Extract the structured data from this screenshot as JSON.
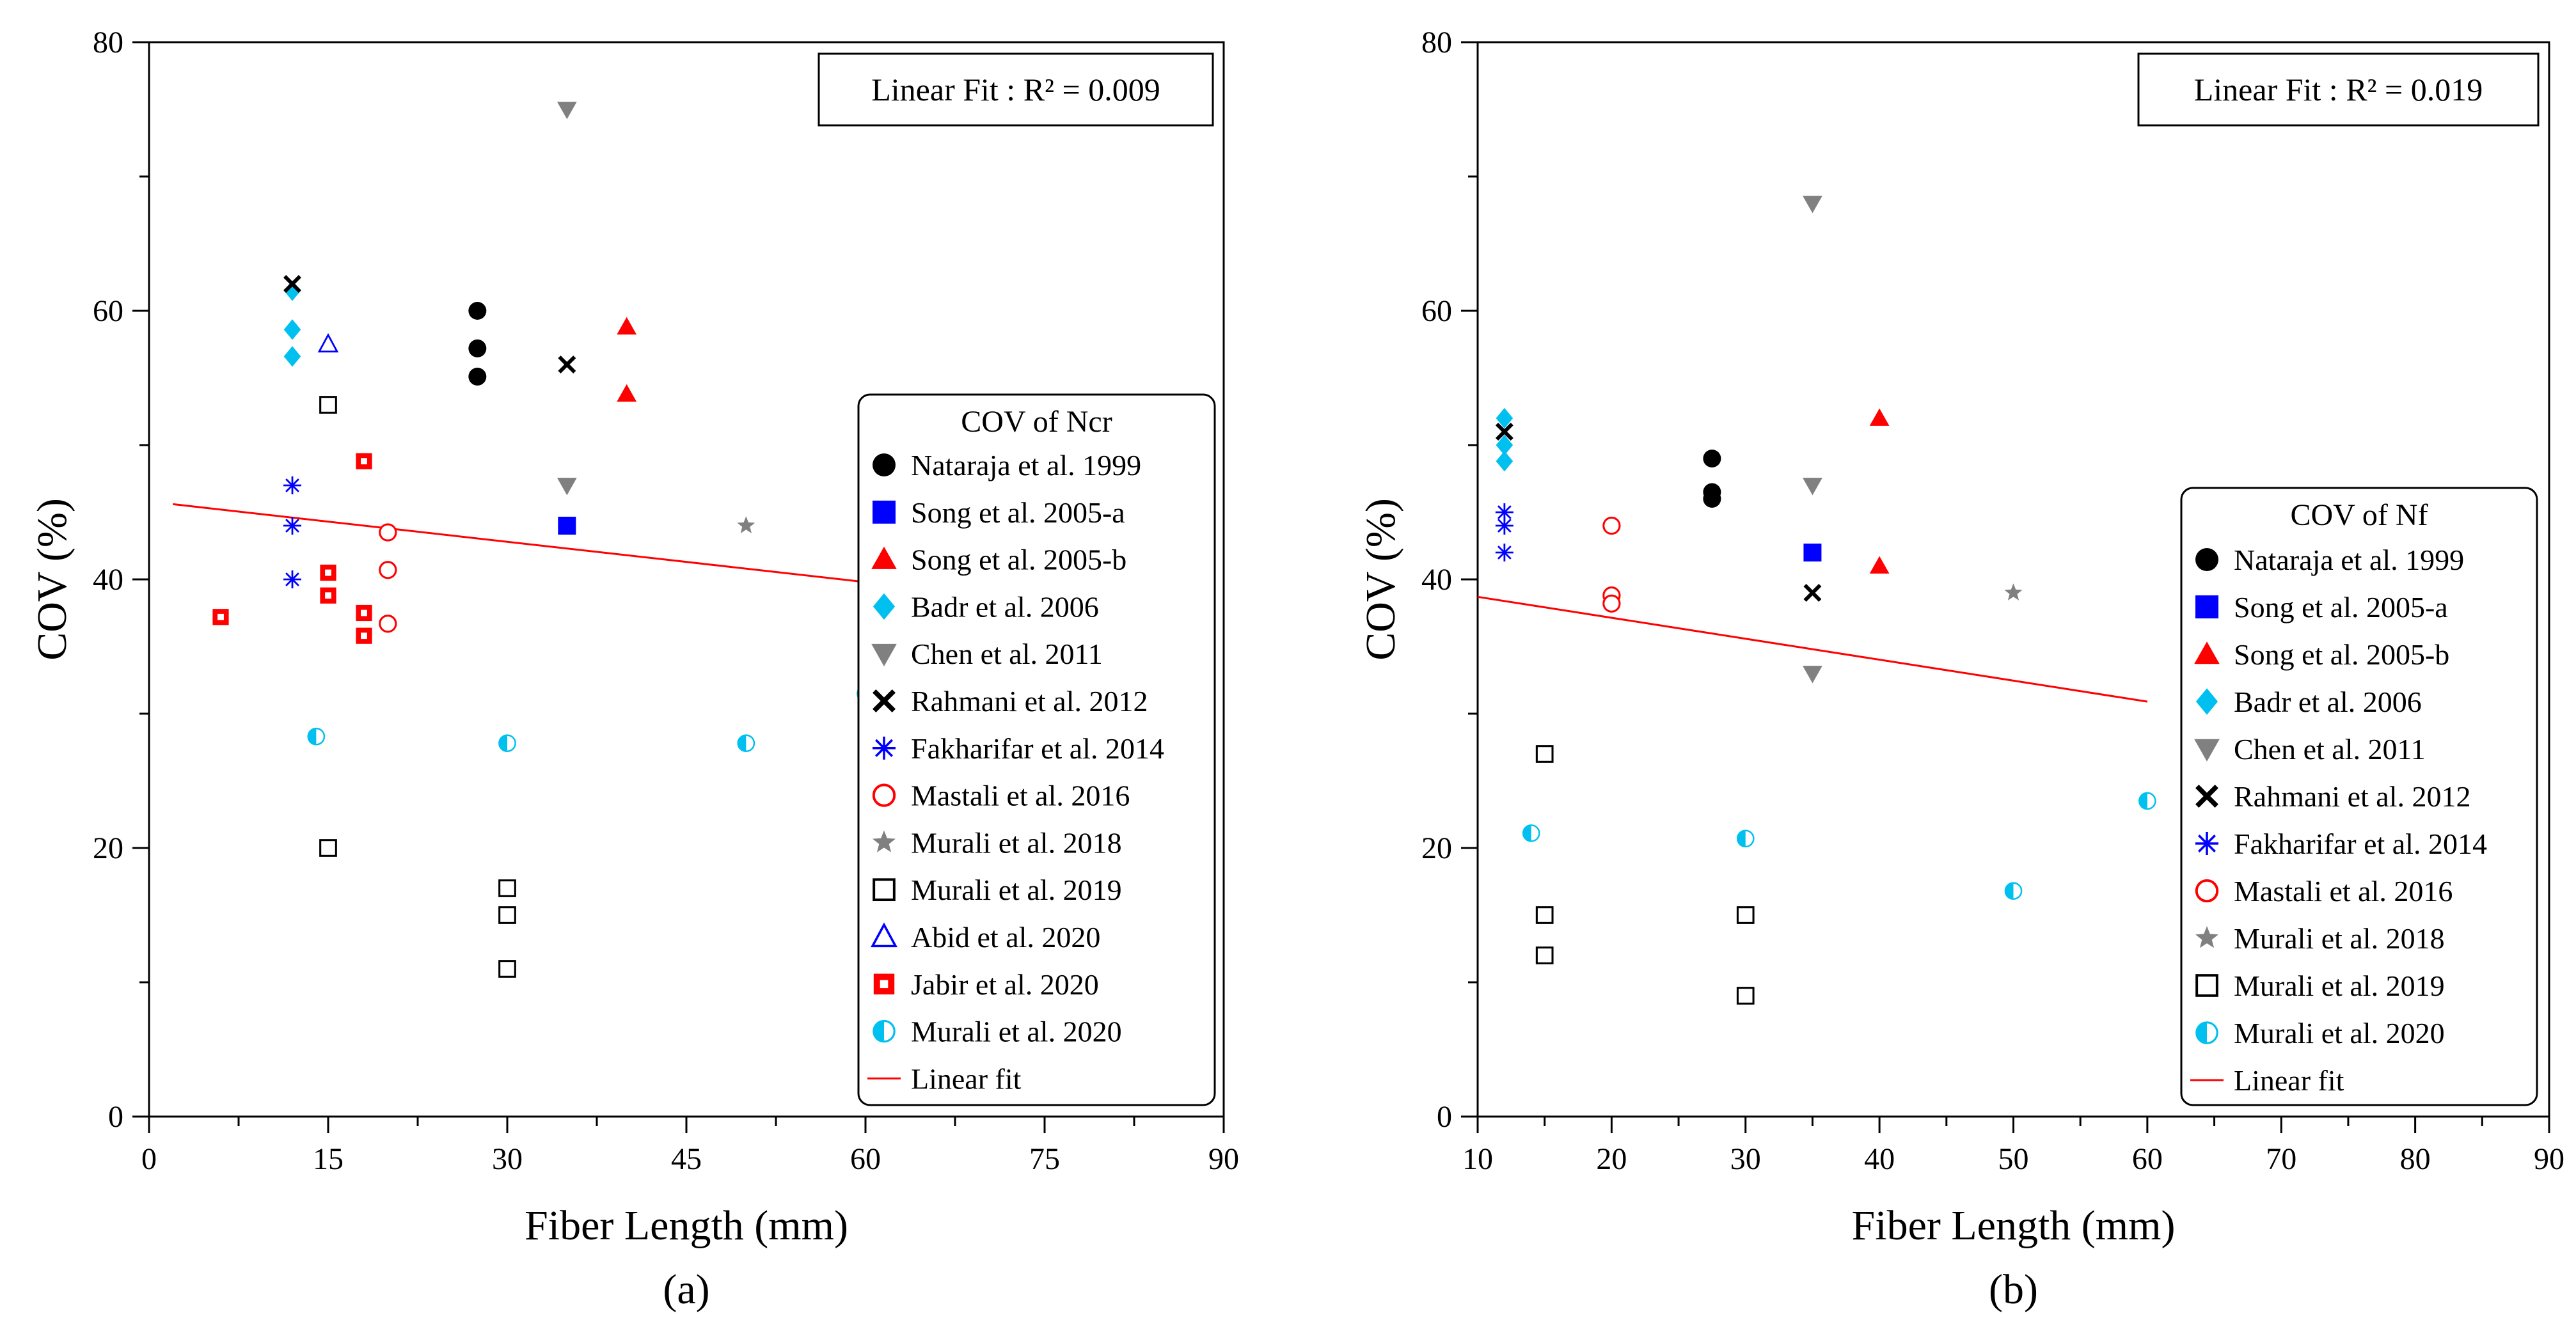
{
  "chart_data": [
    {
      "type": "scatter",
      "panel_label": "(a)",
      "xlabel": "Fiber Length (mm)",
      "ylabel": "COV (%)",
      "xlim": [
        0,
        90
      ],
      "ylim": [
        0,
        80
      ],
      "xticks": [
        "0",
        "15",
        "30",
        "45",
        "60",
        "75",
        "90"
      ],
      "yticks": [
        "0",
        "20",
        "40",
        "60",
        "80"
      ],
      "grid": false,
      "legend_title": "COV of Ncr",
      "legend_position": "right",
      "fit_annotation": "Linear Fit : R² = 0.009",
      "series": [
        {
          "name": "Nataraja et al. 1999",
          "marker": "circle",
          "color": "#000000",
          "points": [
            [
              27.5,
              60
            ],
            [
              27.5,
              57.2
            ],
            [
              27.5,
              55.1
            ]
          ]
        },
        {
          "name": "Song et al. 2005-a",
          "marker": "square",
          "color": "#0000ff",
          "points": [
            [
              35,
              44
            ]
          ]
        },
        {
          "name": "Song et al. 2005-b",
          "marker": "triangle",
          "color": "#ff0000",
          "points": [
            [
              40,
              58.8
            ],
            [
              40,
              53.8
            ]
          ]
        },
        {
          "name": "Badr et al. 2006",
          "marker": "diamond",
          "color": "#00c0f0",
          "points": [
            [
              12,
              61.5
            ],
            [
              12,
              58.6
            ],
            [
              12,
              56.6
            ]
          ]
        },
        {
          "name": "Chen et al. 2011",
          "marker": "triangle-down",
          "color": "#808080",
          "points": [
            [
              35,
              75
            ],
            [
              35,
              47
            ]
          ]
        },
        {
          "name": "Rahmani et al. 2012",
          "marker": "x",
          "color": "#000000",
          "points": [
            [
              12,
              62
            ],
            [
              35,
              56
            ]
          ]
        },
        {
          "name": "Fakharifar et al. 2014",
          "marker": "asterisk",
          "color": "#0000ff",
          "points": [
            [
              12,
              47
            ],
            [
              12,
              44
            ],
            [
              12,
              40
            ]
          ]
        },
        {
          "name": "Mastali et al. 2016",
          "marker": "circle-open",
          "color": "#ff0000",
          "points": [
            [
              20,
              43.5
            ],
            [
              20,
              40.7
            ],
            [
              20,
              36.7
            ]
          ]
        },
        {
          "name": "Murali et al. 2018",
          "marker": "star",
          "color": "#808080",
          "points": [
            [
              50,
              44
            ]
          ]
        },
        {
          "name": "Murali et al. 2019",
          "marker": "square-open",
          "color": "#000000",
          "points": [
            [
              15,
              53
            ],
            [
              15,
              20
            ],
            [
              30,
              17
            ],
            [
              30,
              15
            ],
            [
              30,
              11
            ]
          ]
        },
        {
          "name": "Abid et al. 2020",
          "marker": "triangle-open",
          "color": "#0000ff",
          "points": [
            [
              15,
              57.5
            ]
          ]
        },
        {
          "name": "Jabir et al. 2020",
          "marker": "square-dot",
          "color": "#ff0000",
          "points": [
            [
              6,
              37.2
            ],
            [
              15,
              40.5
            ],
            [
              15,
              38.8
            ],
            [
              18,
              48.8
            ],
            [
              18,
              37.5
            ],
            [
              18,
              35.8
            ]
          ]
        },
        {
          "name": "Murali et al. 2020",
          "marker": "circle-half",
          "color": "#00c0f0",
          "points": [
            [
              14,
              28.3
            ],
            [
              30,
              27.8
            ],
            [
              50,
              27.8
            ],
            [
              60,
              31.5
            ]
          ]
        }
      ],
      "fit": {
        "name": "Linear fit",
        "color": "#ff0000",
        "x": [
          2,
          60
        ],
        "y": [
          45.6,
          39.8
        ]
      }
    },
    {
      "type": "scatter",
      "panel_label": "(b)",
      "xlabel": "Fiber Length (mm)",
      "ylabel": "COV (%)",
      "xlim": [
        10,
        90
      ],
      "ylim": [
        0,
        80
      ],
      "xticks": [
        "10",
        "20",
        "30",
        "40",
        "50",
        "60",
        "70",
        "80",
        "90"
      ],
      "yticks": [
        "0",
        "20",
        "40",
        "60",
        "80"
      ],
      "grid": false,
      "legend_title": "COV of Nf",
      "legend_position": "right",
      "fit_annotation": "Linear Fit : R² = 0.019",
      "series": [
        {
          "name": "Nataraja et al. 1999",
          "marker": "circle",
          "color": "#000000",
          "points": [
            [
              27.5,
              49
            ],
            [
              27.5,
              46.5
            ],
            [
              27.5,
              46
            ]
          ]
        },
        {
          "name": "Song et al. 2005-a",
          "marker": "square",
          "color": "#0000ff",
          "points": [
            [
              35,
              42
            ]
          ]
        },
        {
          "name": "Song et al. 2005-b",
          "marker": "triangle",
          "color": "#ff0000",
          "points": [
            [
              40,
              52
            ],
            [
              40,
              41
            ]
          ]
        },
        {
          "name": "Badr et al. 2006",
          "marker": "diamond",
          "color": "#00c0f0",
          "points": [
            [
              12,
              52
            ],
            [
              12,
              50
            ],
            [
              12,
              48.8
            ]
          ]
        },
        {
          "name": "Chen et al. 2011",
          "marker": "triangle-down",
          "color": "#808080",
          "points": [
            [
              35,
              68
            ],
            [
              35,
              47
            ],
            [
              35,
              33
            ]
          ]
        },
        {
          "name": "Rahmani et al. 2012",
          "marker": "x",
          "color": "#000000",
          "points": [
            [
              12,
              51
            ],
            [
              35,
              39
            ]
          ]
        },
        {
          "name": "Fakharifar et al. 2014",
          "marker": "asterisk",
          "color": "#0000ff",
          "points": [
            [
              12,
              45
            ],
            [
              12,
              44
            ],
            [
              12,
              42
            ]
          ]
        },
        {
          "name": "Mastali et al. 2016",
          "marker": "circle-open",
          "color": "#ff0000",
          "points": [
            [
              20,
              44
            ],
            [
              20,
              38.8
            ],
            [
              20,
              38.2
            ]
          ]
        },
        {
          "name": "Murali et al. 2018",
          "marker": "star",
          "color": "#808080",
          "points": [
            [
              50,
              39
            ]
          ]
        },
        {
          "name": "Murali et al. 2019",
          "marker": "square-open",
          "color": "#000000",
          "points": [
            [
              15,
              27
            ],
            [
              15,
              15
            ],
            [
              15,
              12
            ],
            [
              30,
              15
            ],
            [
              30,
              9
            ]
          ]
        },
        {
          "name": "Murali et al. 2020",
          "marker": "circle-half",
          "color": "#00c0f0",
          "points": [
            [
              14,
              21.1
            ],
            [
              30,
              20.7
            ],
            [
              50,
              16.8
            ],
            [
              60,
              23.5
            ]
          ]
        }
      ],
      "fit": {
        "name": "Linear fit",
        "color": "#ff0000",
        "x": [
          10,
          60
        ],
        "y": [
          38.7,
          30.9
        ]
      }
    }
  ]
}
